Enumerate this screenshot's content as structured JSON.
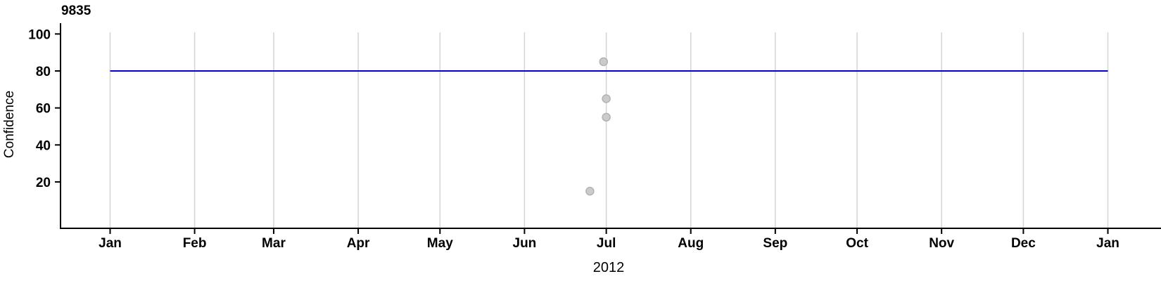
{
  "chart_data": {
    "type": "scatter",
    "title": "9835",
    "xlabel": "2012",
    "ylabel": "Confidence",
    "x_axis": {
      "unit": "month",
      "tick_labels": [
        "Jan",
        "Feb",
        "Mar",
        "Apr",
        "May",
        "Jun",
        "Jul",
        "Aug",
        "Sep",
        "Oct",
        "Nov",
        "Dec",
        "Jan"
      ],
      "tick_days_from_jan1_2012": [
        0,
        31,
        60,
        91,
        121,
        152,
        182,
        213,
        244,
        274,
        305,
        335,
        366
      ],
      "range_days": [
        0,
        366
      ],
      "grid": true
    },
    "y_axis": {
      "ticks": [
        20,
        40,
        60,
        80,
        100
      ],
      "range": [
        0,
        105
      ],
      "grid": false
    },
    "reference_line": {
      "value": 80,
      "color": "#0000cc"
    },
    "points": [
      {
        "date": "2012-06-30",
        "day": 181,
        "confidence": 85
      },
      {
        "date": "2012-07-01",
        "day": 182,
        "confidence": 65
      },
      {
        "date": "2012-07-01",
        "day": 182,
        "confidence": 55
      },
      {
        "date": "2012-06-25",
        "day": 176,
        "confidence": 15
      }
    ],
    "colors": {
      "point_fill": "#cbcbcb",
      "point_stroke": "#b2b2b2",
      "grid": "#d4d4d4",
      "axis": "#000000",
      "text": "#000000"
    },
    "legend": null
  }
}
